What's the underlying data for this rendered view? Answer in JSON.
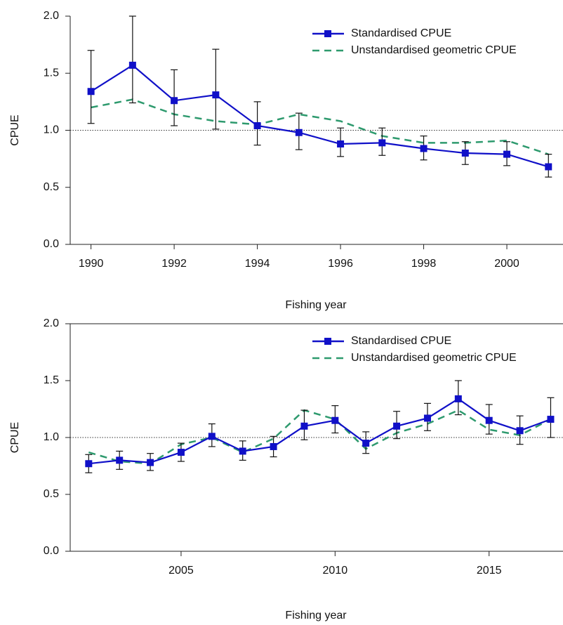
{
  "chart_data": [
    {
      "type": "line",
      "x_label": "Fishing year",
      "y_label": "CPUE",
      "x": [
        1990,
        1991,
        1992,
        1993,
        1994,
        1995,
        1996,
        1997,
        1998,
        1999,
        2000,
        2001
      ],
      "xlim": [
        1989.5,
        2001.35
      ],
      "xticks": [
        1990,
        1992,
        1994,
        1996,
        1998,
        2000
      ],
      "ylim": [
        0,
        2
      ],
      "yticks": [
        {
          "value": 0,
          "label": "0.0"
        },
        {
          "value": 0.5,
          "label": "0.5"
        },
        {
          "value": 1,
          "label": "1.0"
        },
        {
          "value": 1.5,
          "label": "1.5"
        },
        {
          "value": 2,
          "label": "2.0"
        }
      ],
      "hline": 1,
      "legend": "upper right",
      "series": [
        {
          "name": "Standardised CPUE",
          "color": "#1010c8",
          "values": [
            1.34,
            1.57,
            1.26,
            1.31,
            1.04,
            0.98,
            0.88,
            0.89,
            0.84,
            0.8,
            0.79,
            0.68
          ],
          "lower": [
            1.06,
            1.24,
            1.04,
            1.01,
            0.87,
            0.83,
            0.77,
            0.78,
            0.74,
            0.7,
            0.69,
            0.59
          ],
          "upper": [
            1.7,
            2.0,
            1.53,
            1.71,
            1.25,
            1.15,
            1.02,
            1.02,
            0.95,
            0.9,
            0.9,
            0.79
          ]
        },
        {
          "name": "Unstandardised geometric CPUE",
          "color": "#2e9a6e",
          "values": [
            1.2,
            1.27,
            1.14,
            1.08,
            1.05,
            1.14,
            1.08,
            0.95,
            0.89,
            0.89,
            0.91,
            0.79
          ]
        }
      ]
    },
    {
      "type": "line",
      "x_label": "Fishing year",
      "y_label": "CPUE",
      "x": [
        2002,
        2003,
        2004,
        2005,
        2006,
        2007,
        2008,
        2009,
        2010,
        2011,
        2012,
        2013,
        2014,
        2015,
        2016,
        2017
      ],
      "xlim": [
        2001.4,
        2017.4
      ],
      "xticks": [
        2005,
        2010,
        2015
      ],
      "ylim": [
        0,
        2
      ],
      "yticks": [
        {
          "value": 0,
          "label": "0.0"
        },
        {
          "value": 0.5,
          "label": "0.5"
        },
        {
          "value": 1,
          "label": "1.0"
        },
        {
          "value": 1.5,
          "label": "1.5"
        },
        {
          "value": 2,
          "label": "2.0"
        }
      ],
      "hline": 1,
      "legend": "upper right",
      "series": [
        {
          "name": "Standardised CPUE",
          "color": "#1010c8",
          "values": [
            0.77,
            0.8,
            0.78,
            0.87,
            1.01,
            0.88,
            0.92,
            1.1,
            1.15,
            0.95,
            1.1,
            1.17,
            1.34,
            1.15,
            1.06,
            1.16
          ],
          "lower": [
            0.69,
            0.72,
            0.71,
            0.79,
            0.92,
            0.8,
            0.83,
            0.98,
            1.04,
            0.86,
            0.99,
            1.06,
            1.2,
            1.03,
            0.94,
            1.0
          ],
          "upper": [
            0.85,
            0.88,
            0.86,
            0.95,
            1.12,
            0.97,
            1.01,
            1.24,
            1.28,
            1.05,
            1.23,
            1.3,
            1.5,
            1.29,
            1.19,
            1.35
          ]
        },
        {
          "name": "Unstandardised geometric CPUE",
          "color": "#2e9a6e",
          "values": [
            0.87,
            0.79,
            0.77,
            0.94,
            1.0,
            0.87,
            0.99,
            1.24,
            1.16,
            0.9,
            1.04,
            1.12,
            1.24,
            1.07,
            1.02,
            1.16
          ]
        }
      ]
    }
  ]
}
